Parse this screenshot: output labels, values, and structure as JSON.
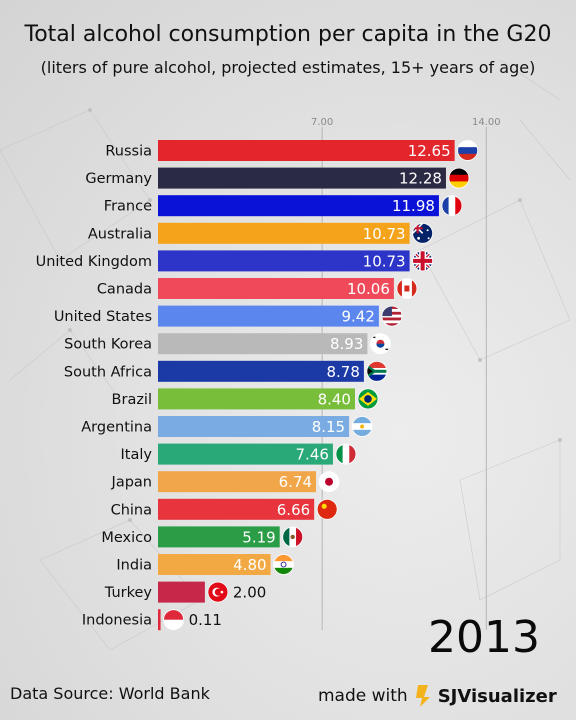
{
  "title": "Total alcohol consumption per capita in the G20",
  "subtitle": "(liters of pure alcohol, projected estimates, 15+ years of age)",
  "year": "2013",
  "source": "Data Source: World Bank",
  "made_with": "made with",
  "brand": "SJVisualizer",
  "chart_data": {
    "type": "bar",
    "orientation": "horizontal",
    "xlim": [
      0,
      14
    ],
    "x_ticks": [
      "7.00",
      "14.00"
    ],
    "grid": true,
    "categories": [
      "Russia",
      "Germany",
      "France",
      "Australia",
      "United Kingdom",
      "Canada",
      "United States",
      "South Korea",
      "South Africa",
      "Brazil",
      "Argentina",
      "Italy",
      "Japan",
      "China",
      "Mexico",
      "India",
      "Turkey",
      "Indonesia"
    ],
    "values": [
      12.65,
      12.28,
      11.98,
      10.73,
      10.73,
      10.06,
      9.42,
      8.93,
      8.78,
      8.4,
      8.15,
      7.46,
      6.74,
      6.66,
      5.19,
      4.8,
      2.0,
      0.11
    ],
    "value_labels": [
      "12.65",
      "12.28",
      "11.98",
      "10.73",
      "10.73",
      "10.06",
      "9.42",
      "8.93",
      "8.78",
      "8.40",
      "8.15",
      "7.46",
      "6.74",
      "6.66",
      "5.19",
      "4.80",
      "2.00",
      "0.11"
    ],
    "colors": [
      "#e3262b",
      "#2b2a44",
      "#0a12d8",
      "#f5a31a",
      "#2d35c9",
      "#f04a5a",
      "#5b86ee",
      "#b9b9b9",
      "#1b3aa6",
      "#79be3a",
      "#7aace3",
      "#29a878",
      "#f2a64a",
      "#e8343c",
      "#2c9d47",
      "#f2a943",
      "#c6284a",
      "#e0283b"
    ],
    "flags": [
      "russia-flag",
      "germany-flag",
      "france-flag",
      "australia-flag",
      "united-kingdom-flag",
      "canada-flag",
      "united-states-flag",
      "south-korea-flag",
      "south-africa-flag",
      "brazil-flag",
      "argentina-flag",
      "italy-flag",
      "japan-flag",
      "china-flag",
      "mexico-flag",
      "india-flag",
      "turkey-flag",
      "indonesia-flag"
    ]
  }
}
